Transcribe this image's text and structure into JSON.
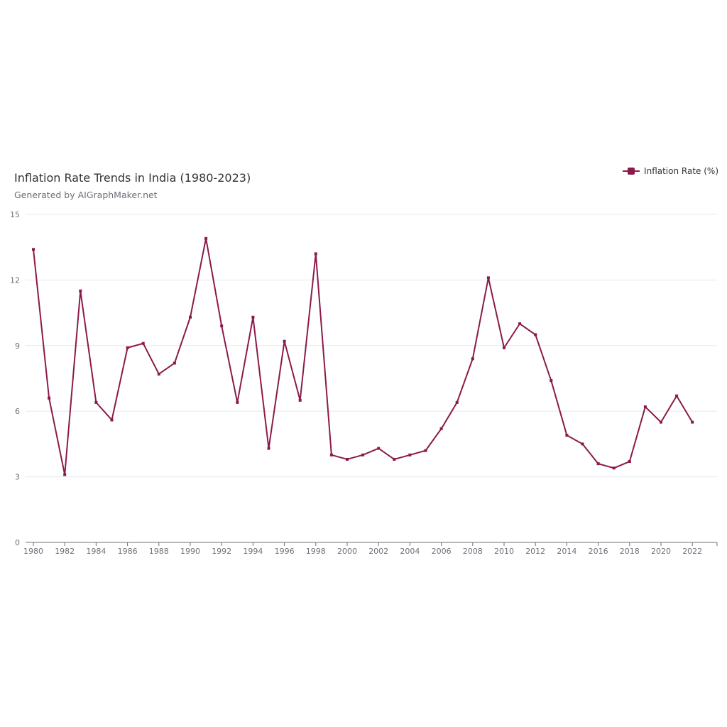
{
  "chart_data": {
    "type": "line",
    "title": "Inflation Rate Trends in India (1980-2023)",
    "subtitle": "Generated by AIGraphMaker.net",
    "x": [
      1980,
      1981,
      1982,
      1983,
      1984,
      1985,
      1986,
      1987,
      1988,
      1989,
      1990,
      1991,
      1992,
      1993,
      1994,
      1995,
      1996,
      1997,
      1998,
      1999,
      2000,
      2001,
      2002,
      2003,
      2004,
      2005,
      2006,
      2007,
      2008,
      2009,
      2010,
      2011,
      2012,
      2013,
      2014,
      2015,
      2016,
      2017,
      2018,
      2019,
      2020,
      2021,
      2022
    ],
    "xticks": [
      1980,
      1982,
      1984,
      1986,
      1988,
      1990,
      1992,
      1994,
      1996,
      1998,
      2000,
      2002,
      2004,
      2006,
      2008,
      2010,
      2012,
      2014,
      2016,
      2018,
      2020,
      2022
    ],
    "series": [
      {
        "name": "Inflation Rate (%)",
        "color": "#8b1a4a",
        "values": [
          13.4,
          6.6,
          3.1,
          11.5,
          6.4,
          5.6,
          8.9,
          9.1,
          7.7,
          8.2,
          10.3,
          13.9,
          9.9,
          6.4,
          10.3,
          4.3,
          9.2,
          6.5,
          13.2,
          4.0,
          3.8,
          4.0,
          4.3,
          3.8,
          4.0,
          4.2,
          5.2,
          6.4,
          8.4,
          12.1,
          8.9,
          10.0,
          9.5,
          7.4,
          4.9,
          4.5,
          3.6,
          3.4,
          3.7,
          6.2,
          5.5,
          6.7,
          5.5
        ]
      }
    ],
    "ylim": [
      0,
      15
    ],
    "yticks": [
      0,
      3,
      6,
      9,
      12,
      15
    ],
    "grid": true,
    "legend": "top-right"
  }
}
